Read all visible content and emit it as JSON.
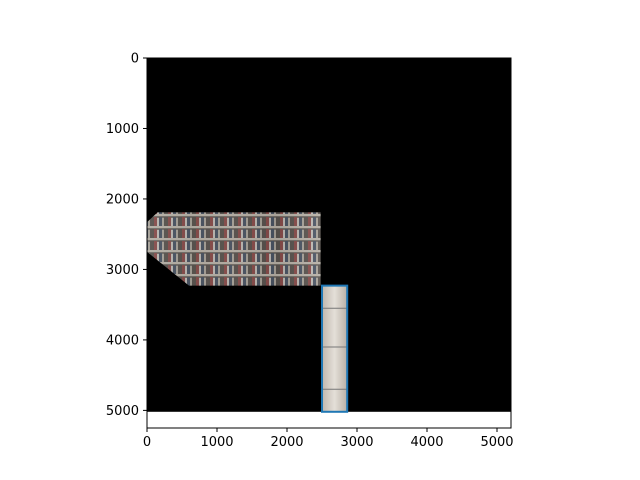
{
  "chart_data": {
    "type": "image",
    "title": "",
    "xlabel": "",
    "ylabel": "",
    "xlim": [
      0,
      5200
    ],
    "ylim": [
      5250,
      0
    ],
    "xticks": [
      0,
      1000,
      2000,
      3000,
      4000,
      5000
    ],
    "yticks": [
      0,
      1000,
      2000,
      3000,
      4000,
      5000
    ],
    "xtick_labels": [
      "0",
      "1000",
      "2000",
      "3000",
      "4000",
      "5000"
    ],
    "ytick_labels": [
      "0",
      "1000",
      "2000",
      "3000",
      "4000",
      "5000"
    ],
    "image_extent": {
      "x": [
        0,
        5200
      ],
      "y": [
        0,
        5020
      ]
    },
    "background_color": "#000000",
    "patches": [
      {
        "kind": "panorama-strip",
        "description": "bookshelf panorama fragment",
        "polygon": [
          [
            0,
            2330
          ],
          [
            150,
            2190
          ],
          [
            2480,
            2190
          ],
          [
            2480,
            3230
          ],
          [
            600,
            3230
          ],
          [
            0,
            2750
          ]
        ]
      },
      {
        "kind": "vertical-strip",
        "description": "light vertical strip",
        "polygon": [
          [
            2500,
            3230
          ],
          [
            2860,
            3230
          ],
          [
            2860,
            5020
          ],
          [
            2500,
            5020
          ]
        ]
      }
    ],
    "rectangles": [
      {
        "kind": "highlight-box",
        "x": [
          2500,
          2860
        ],
        "y": [
          3230,
          5020
        ],
        "color": "#1f77b4"
      }
    ],
    "grid": false,
    "legend": "none"
  }
}
